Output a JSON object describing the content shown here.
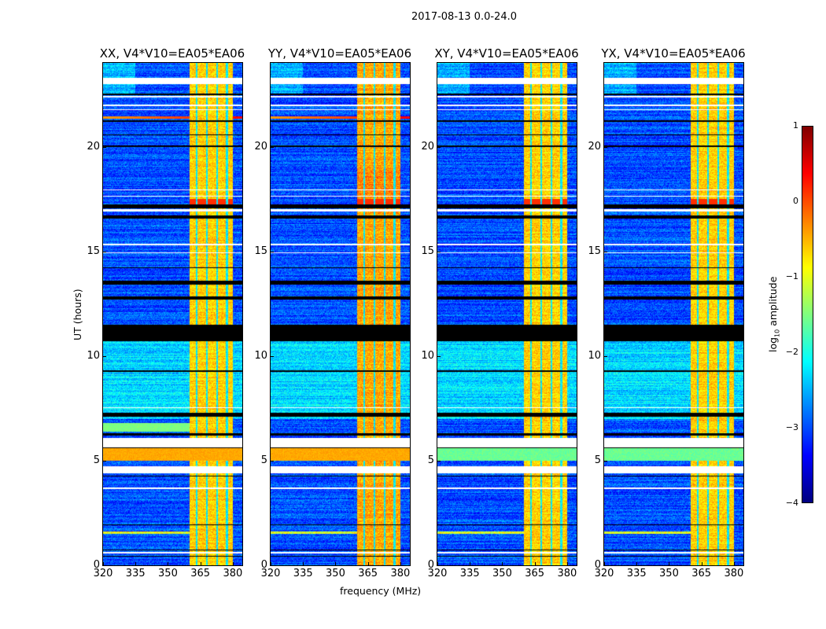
{
  "figure": {
    "suptitle": "2017-08-13 0.0-24.0",
    "xlabel": "frequency (MHz)",
    "ylabel": "UT (hours)"
  },
  "chart_data": {
    "type": "heatmap",
    "xlim": [
      320,
      384.4
    ],
    "ylim": [
      0,
      24
    ],
    "x_ticks": [
      320,
      335,
      350,
      365,
      380
    ],
    "y_ticks": [
      0,
      5,
      10,
      15,
      20
    ],
    "panels": [
      {
        "title": "XX, V4*V10=EA05*EA06",
        "pol": "XX",
        "cross": false
      },
      {
        "title": "YY, V4*V10=EA05*EA06",
        "pol": "YY",
        "cross": false
      },
      {
        "title": "XY, V4*V10=EA05*EA06",
        "pol": "XY",
        "cross": true
      },
      {
        "title": "YX, V4*V10=EA05*EA06",
        "pol": "YX",
        "cross": true
      }
    ],
    "rfi_band_mhz": [
      360,
      380
    ],
    "flagged_white_hours": [
      [
        23.0,
        23.3
      ],
      [
        22.35,
        22.42
      ],
      [
        21.95,
        22.0
      ],
      [
        21.75,
        21.8
      ],
      [
        17.9,
        17.95
      ],
      [
        17.6,
        17.65
      ],
      [
        16.9,
        17.0
      ],
      [
        15.3,
        15.35
      ],
      [
        14.9,
        14.95
      ],
      [
        7.5,
        7.55
      ],
      [
        5.65,
        6.1
      ],
      [
        4.4,
        4.75
      ],
      [
        3.65,
        3.7
      ],
      [
        0.55,
        0.65
      ]
    ],
    "flagged_black_hours": [
      [
        22.45,
        22.55
      ],
      [
        21.2,
        21.25
      ],
      [
        20.55,
        20.6
      ],
      [
        20.0,
        20.05
      ],
      [
        17.05,
        17.25
      ],
      [
        16.55,
        16.7
      ],
      [
        14.2,
        14.25
      ],
      [
        13.4,
        13.6
      ],
      [
        12.7,
        12.85
      ],
      [
        11.0,
        11.5
      ],
      [
        10.7,
        11.0
      ],
      [
        9.25,
        9.3
      ],
      [
        7.1,
        7.3
      ],
      [
        6.2,
        6.3
      ],
      [
        5.6,
        5.68
      ],
      [
        4.25,
        4.3
      ],
      [
        1.9,
        1.95
      ],
      [
        0.7,
        0.75
      ],
      [
        0.4,
        0.45
      ]
    ],
    "colorbar": {
      "label": "log₁₀ amplitude",
      "label_base": "log",
      "label_sub": "10",
      "label_rest": " amplitude",
      "range": [
        -4,
        1
      ],
      "ticks": [
        "1",
        "0",
        "−1",
        "−2",
        "−3",
        "−4"
      ],
      "colormap": "jet"
    }
  }
}
